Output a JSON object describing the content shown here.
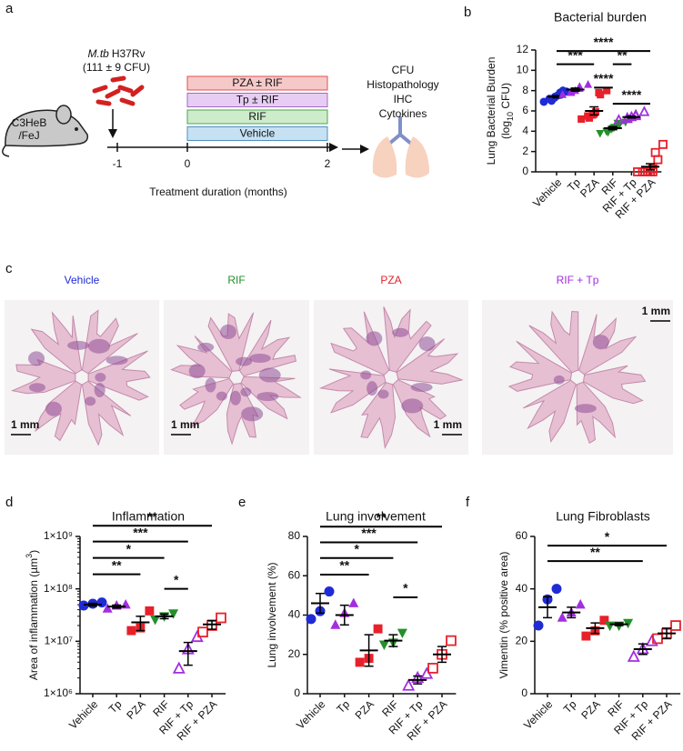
{
  "panel_labels": [
    "a",
    "b",
    "c",
    "d",
    "e",
    "f"
  ],
  "schematic": {
    "mouse_strain": [
      "C3HeB",
      "/FeJ"
    ],
    "infection_species": "M.tb",
    "infection_strain": "H37Rv",
    "inoculum": "(111 ± 9 CFU)",
    "timepoints": [
      -1,
      0,
      2
    ],
    "treatments": [
      {
        "label": "PZA ± RIF",
        "color": "#f6c9c9",
        "border": "#e05050"
      },
      {
        "label": "Tp ± RIF",
        "color": "#e7cdf3",
        "border": "#a36ac4"
      },
      {
        "label": "RIF",
        "color": "#cdeccb",
        "border": "#4fa34c"
      },
      {
        "label": "Vehicle",
        "color": "#c6e1f3",
        "border": "#4f8fc0"
      }
    ],
    "axis_label": "Treatment duration (months)",
    "readouts": [
      "CFU",
      "Histopathology",
      "IHC",
      "Cytokines"
    ]
  },
  "histology": {
    "groups": [
      {
        "label": "Vehicle",
        "color": "#1f2bd6"
      },
      {
        "label": "RIF",
        "color": "#23902a"
      },
      {
        "label": "PZA",
        "color": "#e8202a"
      },
      {
        "label": "RIF + Tp",
        "color": "#a22ee0"
      }
    ],
    "scale_bar": "1 mm"
  },
  "chart_data": [
    {
      "type": "dot",
      "title": "Bacterial burden",
      "y_label_lines": [
        [
          {
            "text": "Lung Bacterial Burden"
          }
        ],
        [
          {
            "text": "(log"
          },
          {
            "text": "10",
            "sub": true
          },
          {
            "text": " CFU)"
          }
        ]
      ],
      "categories": [
        "Vehicle",
        "Tp",
        "PZA",
        "RIF",
        "RIF + Tp",
        "RIF + PZA"
      ],
      "colors": [
        "#1f2bd6",
        "#a22ee0",
        "#e8202a",
        "#23902a",
        "#a22ee0",
        "#e8202a"
      ],
      "markers": [
        "circle",
        "triangle",
        "square",
        "triangle-down",
        "triangle-open",
        "square-open"
      ],
      "values": [
        [
          6.9,
          7.0,
          7.2,
          7.3,
          7.4,
          7.5,
          7.6,
          7.8,
          7.9,
          8.0
        ],
        [
          7.6,
          7.8,
          7.9,
          8.0,
          8.2,
          8.4,
          8.6
        ],
        [
          5.2,
          5.3,
          5.5,
          5.6,
          5.7,
          5.9,
          7.6,
          7.8,
          8.0
        ],
        [
          3.8,
          3.9,
          4.0,
          4.2,
          4.3,
          4.4,
          4.6,
          4.8,
          4.9
        ],
        [
          5.1,
          5.2,
          5.3,
          5.4,
          5.5,
          5.6,
          5.9
        ],
        [
          0,
          0,
          0,
          0,
          0,
          0,
          0,
          0.3,
          1.2,
          1.9,
          2.7
        ]
      ],
      "means": [
        7.4,
        8.1,
        6.0,
        4.3,
        5.4,
        0.5
      ],
      "errors": [
        0.1,
        0.15,
        0.4,
        0.15,
        0.1,
        0.3
      ],
      "ylim": [
        0,
        12
      ],
      "yticks": [
        0,
        2,
        4,
        6,
        8,
        10,
        12
      ],
      "log_scale": false,
      "significance": [
        {
          "between": [
            0,
            5
          ],
          "y": 11.9,
          "label": "****"
        },
        {
          "between": [
            0,
            2
          ],
          "y": 10.6,
          "label": "***"
        },
        {
          "between": [
            3,
            4
          ],
          "y": 10.6,
          "label": "**"
        },
        {
          "between": [
            2,
            3
          ],
          "y": 8.3,
          "label": "****"
        },
        {
          "between": [
            3,
            5
          ],
          "y": 6.7,
          "label": "****"
        }
      ]
    },
    {
      "type": "dot",
      "title": "Inflammation",
      "y_label_lines": [
        [
          {
            "text": "Area of inflammation (µm"
          },
          {
            "text": "3",
            "sup": true
          },
          {
            "text": ")"
          }
        ]
      ],
      "categories": [
        "Vehicle",
        "Tp",
        "PZA",
        "RIF",
        "RIF + Tp",
        "RIF + PZA"
      ],
      "colors": [
        "#1f2bd6",
        "#a22ee0",
        "#e8202a",
        "#23902a",
        "#a22ee0",
        "#e8202a"
      ],
      "markers": [
        "circle",
        "triangle",
        "square",
        "triangle-down",
        "triangle-open",
        "square-open"
      ],
      "values": [
        [
          48000000,
          52000000,
          55000000
        ],
        [
          42000000,
          48000000,
          50000000
        ],
        [
          16000000,
          18000000,
          38000000
        ],
        [
          26000000,
          30000000,
          34000000
        ],
        [
          3000000,
          7000000,
          12000000
        ],
        [
          15000000,
          20000000,
          28000000
        ]
      ],
      "means": [
        50000000,
        46000000,
        23000000,
        30000000,
        6500000,
        21000000
      ],
      "errors": [
        3000000,
        3000000,
        7000000,
        3000000,
        3000000,
        4000000
      ],
      "ylim": [
        1000000,
        1000000000
      ],
      "log_scale": true,
      "yticks": [
        {
          "value": 1000000,
          "label": "1×10⁶"
        },
        {
          "value": 10000000,
          "label": "1×10⁷"
        },
        {
          "value": 100000000,
          "label": "1×10⁸"
        },
        {
          "value": 1000000000,
          "label": "1×10⁹"
        }
      ],
      "significance": [
        {
          "between": [
            0,
            5
          ],
          "y": 1600000000,
          "label": "**"
        },
        {
          "between": [
            0,
            4
          ],
          "y": 800000000,
          "label": "***"
        },
        {
          "between": [
            0,
            3
          ],
          "y": 390000000,
          "label": "*"
        },
        {
          "between": [
            0,
            2
          ],
          "y": 190000000,
          "label": "**"
        },
        {
          "between": [
            3,
            4
          ],
          "y": 100000000,
          "label": "*"
        }
      ]
    },
    {
      "type": "dot",
      "title": "Lung involvement",
      "y_label_lines": [
        [
          {
            "text": "Lung involvement (%)"
          }
        ]
      ],
      "categories": [
        "Vehicle",
        "Tp",
        "PZA",
        "RIF",
        "RIF + Tp",
        "RIF + PZA"
      ],
      "colors": [
        "#1f2bd6",
        "#a22ee0",
        "#e8202a",
        "#23902a",
        "#a22ee0",
        "#e8202a"
      ],
      "markers": [
        "circle",
        "triangle",
        "square",
        "triangle-down",
        "triangle-open",
        "square-open"
      ],
      "values": [
        [
          38,
          42,
          52
        ],
        [
          35,
          41,
          46
        ],
        [
          16,
          18,
          33
        ],
        [
          25,
          26,
          31
        ],
        [
          4,
          8,
          10
        ],
        [
          13,
          20,
          27
        ]
      ],
      "means": [
        46,
        40,
        22,
        27,
        7,
        20
      ],
      "errors": [
        5,
        5,
        8,
        3,
        2,
        4
      ],
      "ylim": [
        0,
        80
      ],
      "yticks": [
        0,
        20,
        40,
        60,
        80
      ],
      "log_scale": false,
      "significance": [
        {
          "between": [
            0,
            5
          ],
          "y": 85,
          "label": "**"
        },
        {
          "between": [
            0,
            4
          ],
          "y": 77,
          "label": "***"
        },
        {
          "between": [
            0,
            3
          ],
          "y": 69,
          "label": "*"
        },
        {
          "between": [
            0,
            2
          ],
          "y": 60.6,
          "label": "**"
        },
        {
          "between": [
            3,
            4
          ],
          "y": 49,
          "label": "*"
        }
      ]
    },
    {
      "type": "dot",
      "title": "Lung Fibroblasts",
      "y_label_lines": [
        [
          {
            "text": "Vimentin (% positive area)"
          }
        ]
      ],
      "categories": [
        "Vehicle",
        "Tp",
        "PZA",
        "RIF",
        "RIF + Tp",
        "RIF + PZA"
      ],
      "colors": [
        "#1f2bd6",
        "#a22ee0",
        "#e8202a",
        "#23902a",
        "#a22ee0",
        "#e8202a"
      ],
      "markers": [
        "circle",
        "triangle",
        "square",
        "triangle-down",
        "triangle-open",
        "square-open"
      ],
      "values": [
        [
          26,
          36,
          40
        ],
        [
          29,
          31,
          34
        ],
        [
          22,
          24,
          28
        ],
        [
          26,
          26,
          27
        ],
        [
          14,
          17,
          20
        ],
        [
          21,
          23,
          26
        ]
      ],
      "means": [
        33,
        31,
        25,
        26.5,
        17,
        23
      ],
      "errors": [
        4,
        2,
        2,
        0.5,
        2,
        2
      ],
      "ylim": [
        0,
        60
      ],
      "yticks": [
        0,
        20,
        40,
        60
      ],
      "log_scale": false,
      "significance": [
        {
          "between": [
            0,
            5
          ],
          "y": 56.5,
          "label": "*"
        },
        {
          "between": [
            0,
            4
          ],
          "y": 50.6,
          "label": "**"
        }
      ]
    }
  ]
}
